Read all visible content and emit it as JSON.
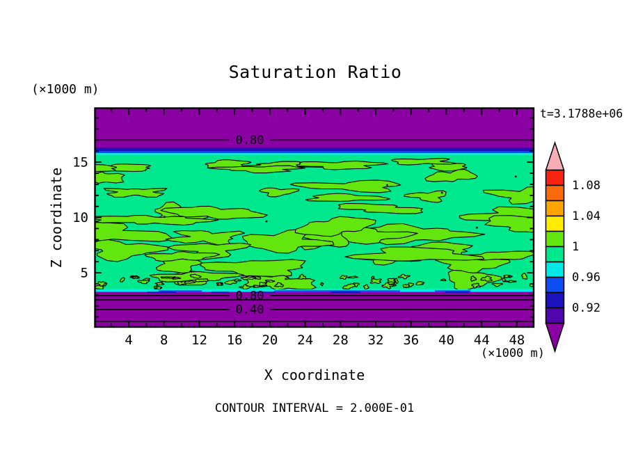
{
  "figure": {
    "title": "Saturation Ratio",
    "time_label": "t=3.1788e+06",
    "contour_interval_label": "CONTOUR INTERVAL = 2.000E-01"
  },
  "chart_data": {
    "type": "contour",
    "title": "Saturation Ratio",
    "xlabel": "X coordinate",
    "ylabel": "Z coordinate",
    "x_unit_label": "(×1000 m)",
    "y_unit_label": "(×1000 m)",
    "time_annotation": "t=3.1788e+06",
    "contour_interval_text": "CONTOUR INTERVAL = 2.000E-01",
    "contour_interval": 0.2,
    "xlim": [
      0,
      50
    ],
    "ylim": [
      0,
      20
    ],
    "x_major_ticks": [
      4,
      8,
      12,
      16,
      20,
      24,
      28,
      32,
      36,
      40,
      44,
      48
    ],
    "x_minor_tick_step": 2,
    "y_major_ticks": [
      5,
      10,
      15
    ],
    "y_minor_tick_step": 1,
    "legend_position": "right",
    "grid": false,
    "colorbar": {
      "boundary_labels": [
        "1.08",
        "1.04",
        "1",
        "0.96",
        "0.92"
      ],
      "segment_colors_top_to_bottom": [
        "#F5230F",
        "#FB6A0A",
        "#FFA400",
        "#FFEC00",
        "#62E60E",
        "#00E88D",
        "#00E9E9",
        "#0D4DF2",
        "#1C13BD",
        "#5106AD"
      ],
      "segment_values_top_to_bottom": [
        [
          1.08,
          1.1
        ],
        [
          1.06,
          1.08
        ],
        [
          1.04,
          1.06
        ],
        [
          1.02,
          1.04
        ],
        [
          1.0,
          1.02
        ],
        [
          0.98,
          1.0
        ],
        [
          0.96,
          0.98
        ],
        [
          0.94,
          0.96
        ],
        [
          0.92,
          0.94
        ],
        [
          0.9,
          0.92
        ]
      ],
      "over_arrow_color": "#F7AEB6",
      "under_arrow_color": "#8B00A3"
    },
    "bands": [
      {
        "z": [
          16.3,
          19.95
        ],
        "color": "#8B00A3",
        "value": "< 0.90"
      },
      {
        "z": [
          15.98,
          16.3
        ],
        "color": "#1C13BD",
        "value": "0.92 - 0.94"
      },
      {
        "z": [
          15.82,
          15.98
        ],
        "color": "#0D4DF2",
        "value": "0.94 - 0.96"
      },
      {
        "z": [
          15.66,
          15.82
        ],
        "color": "#00E9E9",
        "value": "0.96 - 0.98"
      },
      {
        "z": [
          3.5,
          15.66
        ],
        "color": "#00E88D",
        "value": "0.98 - 1.00"
      },
      {
        "z": [
          3.27,
          3.5
        ],
        "color": "#00E9E9",
        "value": "0.96 - 0.98"
      },
      {
        "z": [
          0.0,
          3.27
        ],
        "color": "#8B00A3",
        "value": "< 0.90"
      }
    ],
    "contour_lines": [
      {
        "z": 17.0,
        "label": "0.80"
      },
      {
        "z": 2.93,
        "label": "0.80"
      },
      {
        "z": 2.55,
        "label": ""
      },
      {
        "z": 1.67,
        "label": "0.40"
      },
      {
        "z": 0.6,
        "label": ""
      }
    ],
    "field_texture": {
      "background_value_color": "#00E88D",
      "blob_value_color": "#62E60E",
      "blob_value_range": "1.00 - 1.02",
      "seed": 11
    }
  }
}
